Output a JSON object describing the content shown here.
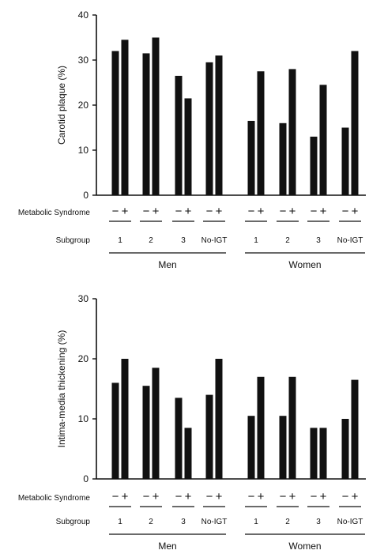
{
  "chart_data": [
    {
      "type": "bar",
      "ylabel": "Carotid plaque (%)",
      "ylim": [
        0,
        40
      ],
      "yticks": [
        "0",
        "10",
        "20",
        "30",
        "40"
      ],
      "row_labels": {
        "syndrome": "Metabolic Syndrome",
        "subgroup": "Subgroup"
      },
      "syndrome_signs": [
        "−",
        "+"
      ],
      "groups": [
        {
          "label": "Men",
          "subgroups": [
            "1",
            "2",
            "3",
            "No-IGT"
          ],
          "values": [
            [
              32,
              34.5
            ],
            [
              31.5,
              35
            ],
            [
              26.5,
              21.5
            ],
            [
              29.5,
              31
            ]
          ]
        },
        {
          "label": "Women",
          "subgroups": [
            "1",
            "2",
            "3",
            "No-IGT"
          ],
          "values": [
            [
              16.5,
              27.5
            ],
            [
              16,
              28
            ],
            [
              13,
              24.5
            ],
            [
              15,
              32
            ]
          ]
        }
      ]
    },
    {
      "type": "bar",
      "ylabel": "Intima-media thickening (%)",
      "ylim": [
        0,
        30
      ],
      "yticks": [
        "0",
        "10",
        "20",
        "30"
      ],
      "row_labels": {
        "syndrome": "Metabolic Syndrome",
        "subgroup": "Subgroup"
      },
      "syndrome_signs": [
        "−",
        "+"
      ],
      "groups": [
        {
          "label": "Men",
          "subgroups": [
            "1",
            "2",
            "3",
            "No-IGT"
          ],
          "values": [
            [
              16,
              20
            ],
            [
              15.5,
              18.5
            ],
            [
              13.5,
              8.5
            ],
            [
              14,
              20
            ]
          ]
        },
        {
          "label": "Women",
          "subgroups": [
            "1",
            "2",
            "3",
            "No-IGT"
          ],
          "values": [
            [
              10.5,
              17
            ],
            [
              10.5,
              17
            ],
            [
              8.5,
              8.5
            ],
            [
              10,
              16.5
            ]
          ]
        }
      ]
    }
  ]
}
